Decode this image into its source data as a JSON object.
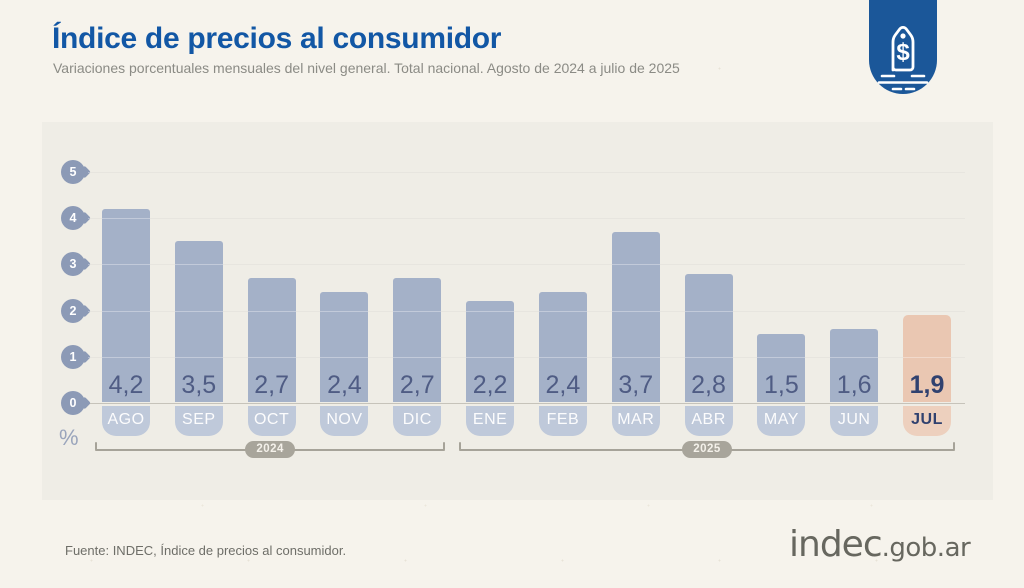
{
  "header": {
    "title": "Índice de precios al consumidor",
    "subtitle": "Variaciones porcentuales mensuales del nivel general. Total nacional. Agosto de 2024 a julio de 2025",
    "badge_symbol": "$",
    "badge_color": "#1B5799"
  },
  "chart_data": {
    "type": "bar",
    "title": "Índice de precios al consumidor",
    "subtitle": "Variaciones porcentuales mensuales del nivel general. Total nacional. Agosto de 2024 a julio de 2025",
    "unit": "%",
    "categories": [
      "AGO",
      "SEP",
      "OCT",
      "NOV",
      "DIC",
      "ENE",
      "FEB",
      "MAR",
      "ABR",
      "MAY",
      "JUN",
      "JUL"
    ],
    "values": [
      4.2,
      3.5,
      2.7,
      2.4,
      2.7,
      2.2,
      2.4,
      3.7,
      2.8,
      1.5,
      1.6,
      1.9
    ],
    "value_labels": [
      "4,2",
      "3,5",
      "2,7",
      "2,4",
      "2,7",
      "2,2",
      "2,4",
      "3,7",
      "2,8",
      "1,5",
      "1,6",
      "1,9"
    ],
    "highlight_index": 11,
    "ylim": [
      0,
      5
    ],
    "yticks": [
      0,
      1,
      2,
      3,
      4,
      5
    ],
    "grid": true,
    "legend": false,
    "year_groups": [
      {
        "label": "2024",
        "from": 0,
        "to": 4
      },
      {
        "label": "2025",
        "from": 5,
        "to": 11
      }
    ],
    "colors": {
      "bar": "#A4B1C8",
      "bar_tab": "#BFC9DA",
      "highlight_bar": "#EAC7B2",
      "highlight_tab": "#EDD0BE",
      "value_text": "#4F5C84",
      "highlight_value_text": "#30416F",
      "axis_pin": "#8C9AB6"
    }
  },
  "footer": {
    "source": "Fuente: INDEC, Índice de precios al consumidor.",
    "logo_main": "indec",
    "logo_suffix": ".gob.ar"
  }
}
